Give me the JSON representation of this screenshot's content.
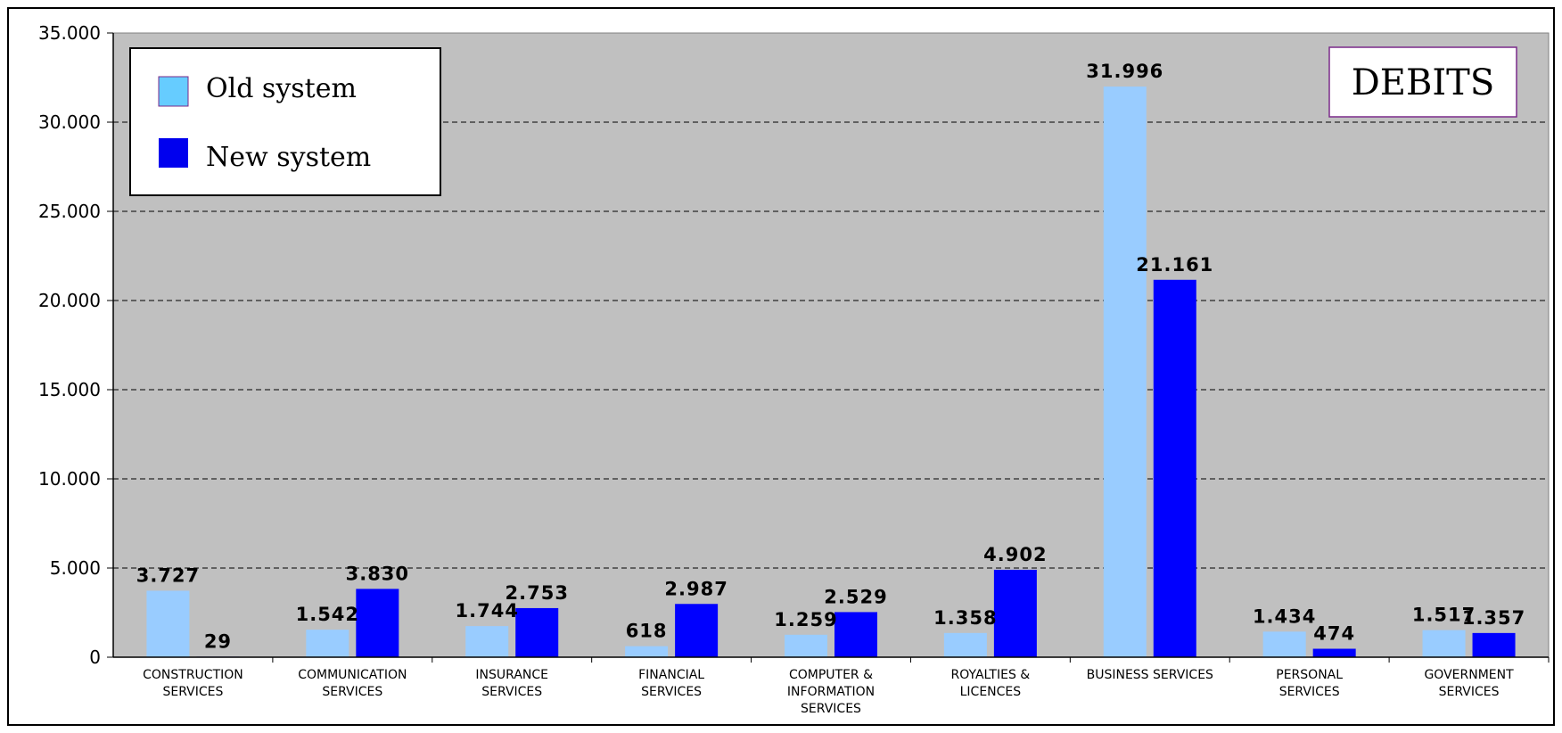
{
  "chart_data": {
    "type": "bar",
    "title": "DEBITS",
    "categories": [
      [
        "CONSTRUCTION",
        "SERVICES"
      ],
      [
        "COMMUNICATION",
        "SERVICES"
      ],
      [
        "INSURANCE",
        "SERVICES"
      ],
      [
        "FINANCIAL",
        "SERVICES"
      ],
      [
        "COMPUTER &",
        "INFORMATION",
        "SERVICES"
      ],
      [
        "ROYALTIES &",
        "LICENCES"
      ],
      [
        "BUSINESS SERVICES"
      ],
      [
        "PERSONAL",
        "SERVICES"
      ],
      [
        "GOVERNMENT",
        "SERVICES"
      ]
    ],
    "series": [
      {
        "name": "Old system",
        "color": "#99ccff",
        "legend_color": "#66ccff",
        "values": [
          3727,
          1542,
          1744,
          618,
          1259,
          1358,
          31996,
          1434,
          1517
        ],
        "labels": [
          "3.727",
          "1.542",
          "1.744",
          "618",
          "1.259",
          "1.358",
          "31.996",
          "1.434",
          "1.517"
        ]
      },
      {
        "name": "New system",
        "color": "#0000ff",
        "legend_color": "#0000ee",
        "values": [
          29,
          3830,
          2753,
          2987,
          2529,
          4902,
          21161,
          474,
          1357
        ],
        "labels": [
          "29",
          "3.830",
          "2.753",
          "2.987",
          "2.529",
          "4.902",
          "21.161",
          "474",
          "1.357"
        ]
      }
    ],
    "ylim": [
      0,
      35000
    ],
    "yticks": [
      0,
      5000,
      10000,
      15000,
      20000,
      25000,
      30000,
      35000
    ],
    "ytick_labels": [
      "0",
      "5.000",
      "10.000",
      "15.000",
      "20.000",
      "25.000",
      "30.000",
      "35.000"
    ],
    "xlabel": "",
    "ylabel": "",
    "grid": true,
    "legend_position": "top-left",
    "plot_background": "#c0c0c0"
  }
}
